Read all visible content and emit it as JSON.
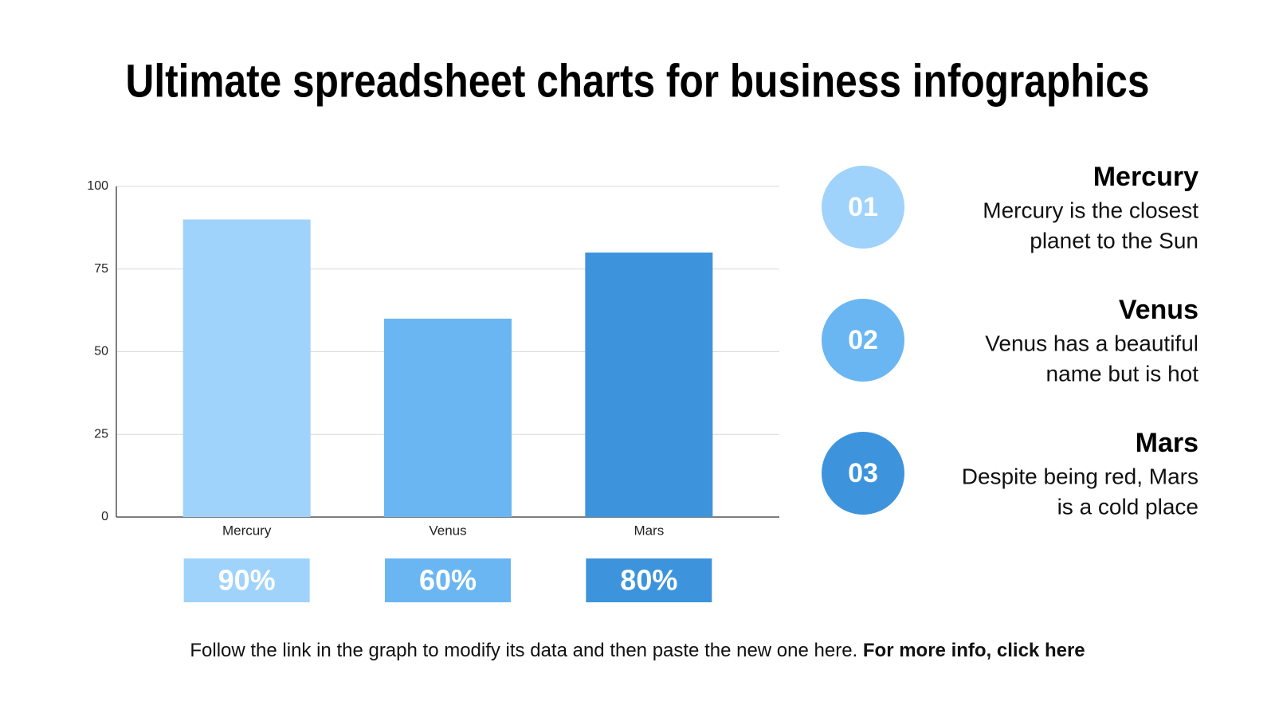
{
  "title": "Ultimate spreadsheet charts for business infographics",
  "chart_data": {
    "type": "bar",
    "categories": [
      "Mercury",
      "Venus",
      "Mars"
    ],
    "values": [
      90,
      60,
      80
    ],
    "value_labels": [
      "90%",
      "60%",
      "80%"
    ],
    "colors": [
      "#9fd3fb",
      "#6ab6f2",
      "#3d94dc"
    ],
    "ylim": [
      0,
      100
    ],
    "yticks": [
      0,
      25,
      50,
      75,
      100
    ],
    "grid": true
  },
  "items": [
    {
      "number": "01",
      "title": "Mercury",
      "lines": [
        "Mercury is the closest",
        "planet to the Sun"
      ],
      "color": "#9fd3fb"
    },
    {
      "number": "02",
      "title": "Venus",
      "lines": [
        "Venus has a beautiful",
        "name but is hot"
      ],
      "color": "#6ab6f2"
    },
    {
      "number": "03",
      "title": "Mars",
      "lines": [
        "Despite being red, Mars",
        "is a cold place"
      ],
      "color": "#3d94dc"
    }
  ],
  "footer": {
    "text": "Follow the link in the graph to modify its data and then paste the new one here.",
    "link": "For more info, click here"
  }
}
